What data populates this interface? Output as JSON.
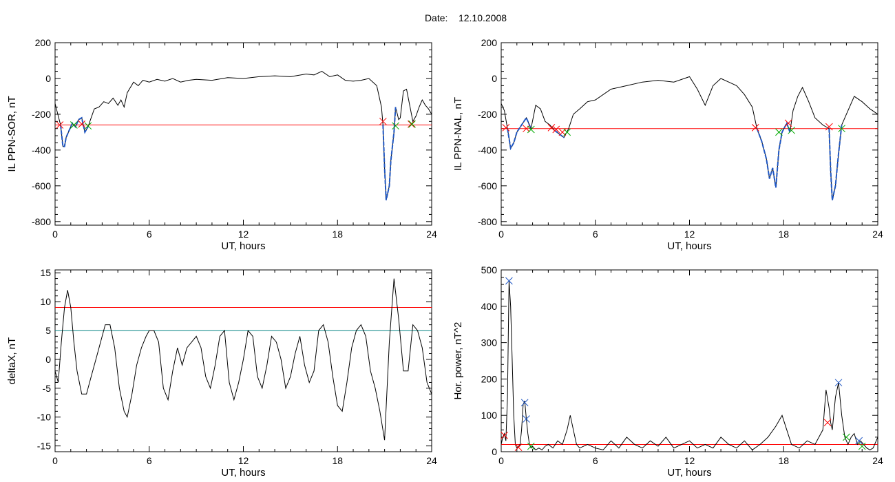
{
  "header": {
    "date_label": "Date:",
    "date_value": "12.10.2008"
  },
  "colors": {
    "trace": "#000000",
    "threshold": "#ff0000",
    "threshold2": "#008080",
    "active_segment": "#1f57c4",
    "marker_start": "#ff0000",
    "marker_end": "#00aa00",
    "marker_peak": "#1f57c4"
  },
  "chart_data": [
    {
      "id": "il-ppn-sor",
      "type": "line",
      "xlabel": "UT, hours",
      "ylabel": "IL PPN-SOR, nT",
      "xlim": [
        0,
        24
      ],
      "ylim": [
        -820,
        200
      ],
      "xticks": [
        0,
        6,
        12,
        18,
        24
      ],
      "yticks": [
        -800,
        -600,
        -400,
        -200,
        0,
        200
      ],
      "threshold": -260,
      "series": [
        {
          "x": [
            0,
            0.2,
            0.35,
            0.5,
            0.6,
            0.7,
            0.9,
            1.1,
            1.3,
            1.5,
            1.7,
            1.9,
            2.1,
            2.3,
            2.5,
            2.8,
            3.1,
            3.4,
            3.7,
            4.0,
            4.2,
            4.4,
            4.6,
            4.8,
            5.0,
            5.3,
            5.6,
            6.0,
            6.5,
            7.0,
            7.5,
            8.0,
            8.5,
            9.0,
            10,
            11,
            12,
            13,
            14,
            15,
            16,
            16.5,
            17,
            17.5,
            18,
            18.5,
            19,
            19.5,
            20,
            20.5,
            20.8,
            20.9,
            21.0,
            21.1,
            21.3,
            21.4,
            21.6,
            21.7,
            21.9,
            22.0,
            22.2,
            22.4,
            22.6,
            22.8,
            23.0,
            23.2,
            23.4,
            23.6,
            23.8,
            24
          ],
          "y": [
            -140,
            -210,
            -260,
            -380,
            -380,
            -330,
            -290,
            -250,
            -270,
            -230,
            -220,
            -300,
            -270,
            -220,
            -170,
            -160,
            -130,
            -140,
            -110,
            -150,
            -120,
            -160,
            -80,
            -50,
            -20,
            -40,
            -10,
            -20,
            -5,
            -15,
            0,
            -20,
            -10,
            -5,
            -10,
            5,
            0,
            10,
            15,
            10,
            25,
            20,
            40,
            10,
            20,
            -10,
            -15,
            -10,
            0,
            -40,
            -160,
            -260,
            -500,
            -680,
            -600,
            -460,
            -300,
            -160,
            -230,
            -220,
            -70,
            -60,
            -150,
            -240,
            -210,
            -160,
            -120,
            -150,
            -170,
            -200
          ],
          "highlight": [
            [
              0.3,
              2.1
            ],
            [
              20.9,
              21.8
            ]
          ]
        }
      ],
      "markers": [
        {
          "x": 0.3,
          "y": -260,
          "kind": "start"
        },
        {
          "x": 1.2,
          "y": -260,
          "kind": "end"
        },
        {
          "x": 1.7,
          "y": -255,
          "kind": "start"
        },
        {
          "x": 2.1,
          "y": -265,
          "kind": "end"
        },
        {
          "x": 20.9,
          "y": -240,
          "kind": "start"
        },
        {
          "x": 21.7,
          "y": -265,
          "kind": "end"
        },
        {
          "x": 22.7,
          "y": -255,
          "kind": "start"
        },
        {
          "x": 22.75,
          "y": -255,
          "kind": "end"
        }
      ]
    },
    {
      "id": "il-ppn-nal",
      "type": "line",
      "xlabel": "UT, hours",
      "ylabel": "IL PPN-NAL, nT",
      "xlim": [
        0,
        24
      ],
      "ylim": [
        -820,
        200
      ],
      "xticks": [
        0,
        6,
        12,
        18,
        24
      ],
      "yticks": [
        -800,
        -600,
        -400,
        -200,
        0,
        200
      ],
      "threshold": -280,
      "series": [
        {
          "x": [
            0,
            0.2,
            0.4,
            0.6,
            0.8,
            1.0,
            1.3,
            1.6,
            1.9,
            2.2,
            2.5,
            2.8,
            3.1,
            3.4,
            3.7,
            4.0,
            4.3,
            4.6,
            5.0,
            5.5,
            6,
            7,
            8,
            9,
            10,
            11,
            12,
            12.5,
            13,
            13.5,
            14,
            14.5,
            15,
            15.5,
            16,
            16.3,
            16.6,
            16.9,
            17.1,
            17.3,
            17.5,
            17.7,
            17.9,
            18.2,
            18.4,
            18.6,
            18.9,
            19.2,
            19.6,
            20,
            20.5,
            20.9,
            21.0,
            21.1,
            21.3,
            21.5,
            21.7,
            22,
            22.5,
            23,
            23.5,
            24
          ],
          "y": [
            -140,
            -180,
            -280,
            -390,
            -360,
            -300,
            -260,
            -220,
            -280,
            -150,
            -170,
            -240,
            -260,
            -290,
            -310,
            -330,
            -280,
            -200,
            -170,
            -130,
            -120,
            -60,
            -40,
            -20,
            -10,
            -20,
            10,
            -60,
            -150,
            -40,
            0,
            -20,
            -40,
            -90,
            -160,
            -280,
            -350,
            -450,
            -560,
            -500,
            -610,
            -400,
            -300,
            -250,
            -300,
            -180,
            -100,
            -50,
            -130,
            -220,
            -260,
            -280,
            -520,
            -680,
            -600,
            -420,
            -260,
            -200,
            -100,
            -130,
            -170,
            -200
          ],
          "highlight": [
            [
              0.3,
              2.0
            ],
            [
              3.2,
              4.2
            ],
            [
              16.2,
              18.5
            ],
            [
              20.9,
              21.7
            ]
          ]
        }
      ],
      "markers": [
        {
          "x": 0.3,
          "y": -275,
          "kind": "start"
        },
        {
          "x": 1.6,
          "y": -280,
          "kind": "start"
        },
        {
          "x": 1.9,
          "y": -285,
          "kind": "end"
        },
        {
          "x": 3.2,
          "y": -275,
          "kind": "start"
        },
        {
          "x": 3.5,
          "y": -285,
          "kind": "start"
        },
        {
          "x": 3.9,
          "y": -300,
          "kind": "start"
        },
        {
          "x": 4.2,
          "y": -300,
          "kind": "end"
        },
        {
          "x": 16.2,
          "y": -275,
          "kind": "start"
        },
        {
          "x": 17.7,
          "y": -300,
          "kind": "end"
        },
        {
          "x": 18.3,
          "y": -250,
          "kind": "start"
        },
        {
          "x": 18.5,
          "y": -290,
          "kind": "end"
        },
        {
          "x": 20.9,
          "y": -270,
          "kind": "start"
        },
        {
          "x": 21.7,
          "y": -280,
          "kind": "end"
        }
      ]
    },
    {
      "id": "deltax",
      "type": "line",
      "xlabel": "UT, hours",
      "ylabel": "deltaX, nT",
      "xlim": [
        0,
        24
      ],
      "ylim": [
        -16,
        15.5
      ],
      "xticks": [
        0,
        6,
        12,
        18,
        24
      ],
      "yticks": [
        -15,
        -10,
        -5,
        0,
        5,
        10,
        15
      ],
      "thresholds": [
        9,
        5
      ],
      "series": [
        {
          "x": [
            0,
            0.2,
            0.4,
            0.6,
            0.8,
            1.0,
            1.2,
            1.4,
            1.7,
            2.0,
            2.3,
            2.6,
            2.9,
            3.2,
            3.5,
            3.8,
            4.1,
            4.4,
            4.6,
            4.9,
            5.2,
            5.5,
            5.8,
            6.0,
            6.3,
            6.6,
            6.9,
            7.2,
            7.5,
            7.8,
            8.1,
            8.4,
            8.7,
            9.0,
            9.3,
            9.6,
            9.9,
            10.2,
            10.5,
            10.8,
            11.1,
            11.4,
            11.7,
            12.0,
            12.3,
            12.6,
            12.9,
            13.2,
            13.5,
            13.8,
            14.1,
            14.4,
            14.7,
            15.0,
            15.3,
            15.6,
            15.9,
            16.2,
            16.5,
            16.8,
            17.1,
            17.4,
            17.7,
            18.0,
            18.3,
            18.6,
            18.9,
            19.2,
            19.5,
            19.8,
            20.1,
            20.4,
            20.7,
            21.0,
            21.3,
            21.6,
            21.9,
            22.2,
            22.5,
            22.8,
            23.1,
            23.4,
            23.7,
            24
          ],
          "y": [
            -2,
            -4,
            3,
            9,
            12,
            9,
            3,
            -2,
            -6,
            -6,
            -3,
            0,
            3,
            6,
            6,
            2,
            -5,
            -9,
            -10,
            -6,
            -1,
            2,
            4,
            5,
            5,
            3,
            -5,
            -7,
            -2,
            2,
            -1,
            2,
            3,
            4,
            2,
            -3,
            -5,
            -1,
            4,
            5,
            -4,
            -7,
            -4,
            0,
            5,
            4,
            -3,
            -5,
            -1,
            4,
            3,
            0,
            -5,
            -3,
            1,
            4,
            -1,
            -4,
            -2,
            5,
            6,
            3,
            -3,
            -8,
            -9,
            -4,
            2,
            5,
            6,
            4,
            -2,
            -5,
            -9,
            -14,
            3,
            14,
            7,
            -2,
            -2,
            6,
            5,
            2,
            -4,
            -6
          ]
        }
      ]
    },
    {
      "id": "hor-power",
      "type": "line",
      "xlabel": "UT, hours",
      "ylabel": "Hor. power, nT^2",
      "xlim": [
        0,
        24
      ],
      "ylim": [
        0,
        500
      ],
      "xticks": [
        0,
        6,
        12,
        18,
        24
      ],
      "yticks": [
        0,
        100,
        200,
        300,
        400,
        500
      ],
      "threshold": 20,
      "series": [
        {
          "x": [
            0,
            0.1,
            0.2,
            0.3,
            0.4,
            0.5,
            0.6,
            0.7,
            0.8,
            0.9,
            1.0,
            1.1,
            1.2,
            1.3,
            1.4,
            1.5,
            1.6,
            1.7,
            1.8,
            1.9,
            2.0,
            2.2,
            2.4,
            2.6,
            2.8,
            3.0,
            3.3,
            3.6,
            3.9,
            4.2,
            4.4,
            4.6,
            4.8,
            5.0,
            5.5,
            6,
            6.5,
            7,
            7.5,
            8,
            8.5,
            9,
            9.5,
            10,
            10.5,
            11,
            11.5,
            12,
            12.5,
            13,
            13.5,
            14,
            14.5,
            15,
            15.5,
            16,
            16.5,
            17,
            17.5,
            17.9,
            18.2,
            18.5,
            19,
            19.5,
            20,
            20.5,
            20.7,
            20.9,
            21.0,
            21.1,
            21.3,
            21.5,
            21.7,
            21.9,
            22.1,
            22.3,
            22.5,
            22.7,
            22.9,
            23.1,
            23.3,
            23.5,
            23.7,
            24
          ],
          "y": [
            20,
            40,
            50,
            30,
            150,
            470,
            400,
            250,
            100,
            20,
            10,
            15,
            20,
            60,
            130,
            140,
            90,
            50,
            20,
            10,
            15,
            5,
            10,
            5,
            15,
            20,
            10,
            30,
            20,
            60,
            100,
            60,
            20,
            10,
            20,
            10,
            5,
            30,
            10,
            40,
            20,
            10,
            30,
            15,
            40,
            10,
            20,
            30,
            10,
            20,
            10,
            40,
            20,
            10,
            30,
            5,
            20,
            40,
            70,
            100,
            60,
            20,
            10,
            30,
            20,
            60,
            170,
            120,
            80,
            60,
            150,
            190,
            100,
            40,
            20,
            40,
            50,
            20,
            30,
            20,
            10,
            5,
            10,
            40
          ]
        }
      ],
      "markers": [
        {
          "x": 0.2,
          "y": 45,
          "kind": "start"
        },
        {
          "x": 0.5,
          "y": 470,
          "kind": "peak"
        },
        {
          "x": 1.1,
          "y": 12,
          "kind": "start"
        },
        {
          "x": 1.5,
          "y": 135,
          "kind": "peak"
        },
        {
          "x": 1.6,
          "y": 90,
          "kind": "peak"
        },
        {
          "x": 1.9,
          "y": 15,
          "kind": "end"
        },
        {
          "x": 20.8,
          "y": 80,
          "kind": "start"
        },
        {
          "x": 21.5,
          "y": 190,
          "kind": "peak"
        },
        {
          "x": 22.0,
          "y": 40,
          "kind": "end"
        },
        {
          "x": 22.8,
          "y": 30,
          "kind": "peak"
        },
        {
          "x": 23.0,
          "y": 15,
          "kind": "end"
        }
      ]
    }
  ]
}
